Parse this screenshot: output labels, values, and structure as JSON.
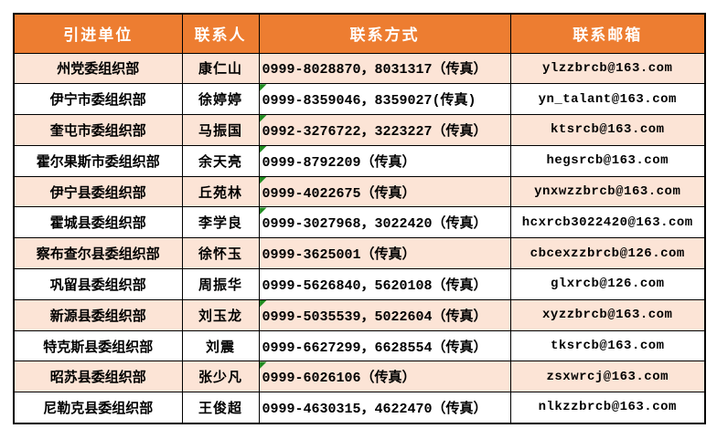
{
  "colors": {
    "header_bg": "#ED7D31",
    "header_text": "#FFFFFF",
    "row_alt_bg": "#FCE4D6",
    "row_bg": "#FFFFFF",
    "border": "#000000",
    "flag_green": "#218C21"
  },
  "table": {
    "headers": [
      "引进单位",
      "联系人",
      "联系方式",
      "联系邮箱"
    ],
    "rows": [
      {
        "unit": "州党委组织部",
        "contact": "康仁山",
        "phone": "0999-8028870，8031317（传真）",
        "email": "ylzzbrcb@163.com",
        "flag": false
      },
      {
        "unit": "伊宁市委组织部",
        "contact": "徐婷婷",
        "phone": "0999-8359046，8359027(传真)",
        "email": "yn_talant@163.com",
        "flag": true
      },
      {
        "unit": "奎屯市委组织部",
        "contact": "马振国",
        "phone": "0992-3276722，3223227（传真）",
        "email": "ktsrcb@163.com",
        "flag": true
      },
      {
        "unit": "霍尔果斯市委组织部",
        "contact": "余天亮",
        "phone": "0999-8792209（传真）",
        "email": "hegsrcb@163.com",
        "flag": true
      },
      {
        "unit": "伊宁县委组织部",
        "contact": "丘苑林",
        "phone": "0999-4022675（传真）",
        "email": "ynxwzzbrcb@163.com",
        "flag": true
      },
      {
        "unit": "霍城县委组织部",
        "contact": "李学良",
        "phone": "0999-3027968，3022420（传真）",
        "email": "hcxrcb3022420@163.com",
        "flag": true
      },
      {
        "unit": "察布查尔县委组织部",
        "contact": "徐怀玉",
        "phone": "0999-3625001（传真）",
        "email": "cbcexzzbrcb@126.com",
        "flag": false
      },
      {
        "unit": "巩留县委组织部",
        "contact": "周振华",
        "phone": "0999-5626840，5620108（传真）",
        "email": "glxrcb@126.com",
        "flag": false
      },
      {
        "unit": "新源县委组织部",
        "contact": "刘玉龙",
        "phone": "0999-5035539，5022604（传真）",
        "email": "xyzzbrcb@163.com",
        "flag": true
      },
      {
        "unit": "特克斯县委组织部",
        "contact": "刘震",
        "phone": "0999-6627299，6628554（传真）",
        "email": "tksrcb@163.com",
        "flag": false
      },
      {
        "unit": "昭苏县委组织部",
        "contact": "张少凡",
        "phone": "0999-6026106（传真）",
        "email": "zsxwrcj@163.com",
        "flag": true
      },
      {
        "unit": "尼勒克县委组织部",
        "contact": "王俊超",
        "phone": "0999-4630315，4622470（传真）",
        "email": "nlkzzbrcb@163.com",
        "flag": false
      }
    ]
  }
}
